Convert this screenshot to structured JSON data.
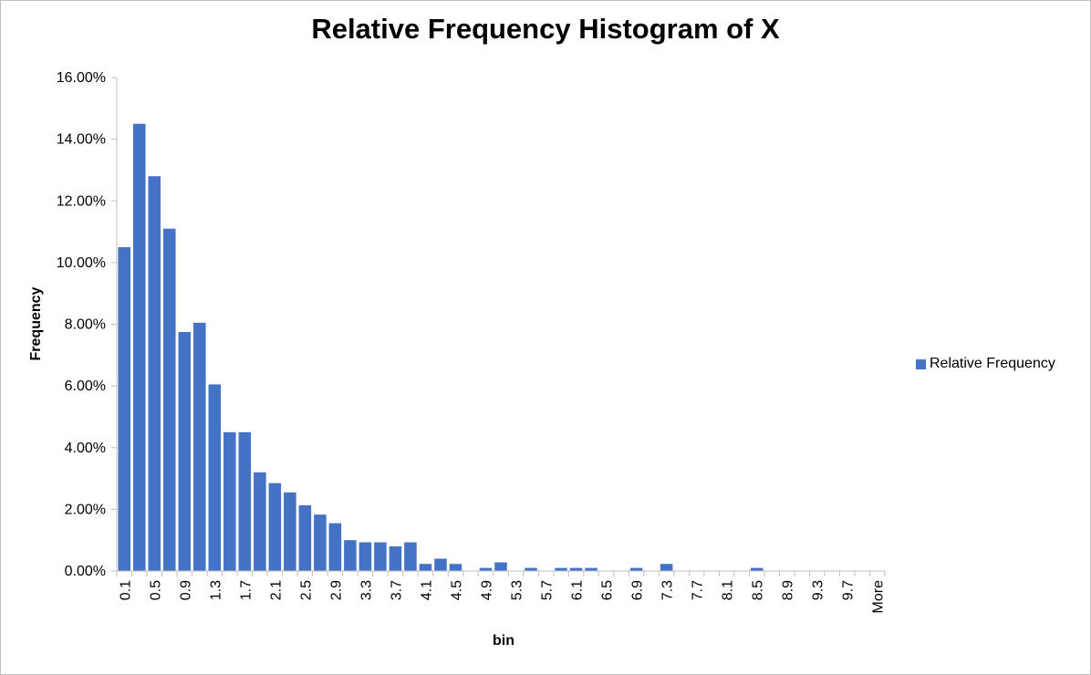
{
  "chart_data": {
    "type": "bar",
    "title": "Relative Frequency Histogram of X",
    "xlabel": "bin",
    "ylabel": "Frequency",
    "ylim": [
      0,
      0.16
    ],
    "y_ticks": [
      "0.00%",
      "2.00%",
      "4.00%",
      "6.00%",
      "8.00%",
      "10.00%",
      "12.00%",
      "14.00%",
      "16.00%"
    ],
    "legend": {
      "position": "right",
      "label": "Relative Frequency"
    },
    "bar_color": "#4472c4",
    "categories": [
      "0.1",
      "0.3",
      "0.5",
      "0.7",
      "0.9",
      "1.1",
      "1.3",
      "1.5",
      "1.7",
      "1.9",
      "2.1",
      "2.3",
      "2.5",
      "2.7",
      "2.9",
      "3.1",
      "3.3",
      "3.5",
      "3.7",
      "3.9",
      "4.1",
      "4.3",
      "4.5",
      "4.7",
      "4.9",
      "5.1",
      "5.3",
      "5.5",
      "5.7",
      "5.9",
      "6.1",
      "6.3",
      "6.5",
      "6.7",
      "6.9",
      "7.1",
      "7.3",
      "7.5",
      "7.7",
      "7.9",
      "8.1",
      "8.3",
      "8.5",
      "8.7",
      "8.9",
      "9.1",
      "9.3",
      "9.5",
      "9.7",
      "9.9",
      "More"
    ],
    "x_tick_labels": [
      "0.1",
      "0.5",
      "0.9",
      "1.3",
      "1.7",
      "2.1",
      "2.5",
      "2.9",
      "3.3",
      "3.7",
      "4.1",
      "4.5",
      "4.9",
      "5.3",
      "5.7",
      "6.1",
      "6.5",
      "6.9",
      "7.3",
      "7.7",
      "8.1",
      "8.5",
      "8.9",
      "9.3",
      "9.7",
      "More"
    ],
    "series": [
      {
        "name": "Relative Frequency",
        "values": [
          0.105,
          0.145,
          0.128,
          0.111,
          0.0775,
          0.0805,
          0.0605,
          0.045,
          0.045,
          0.032,
          0.0285,
          0.0255,
          0.0213,
          0.0183,
          0.0155,
          0.01,
          0.0093,
          0.0093,
          0.008,
          0.0093,
          0.0023,
          0.004,
          0.0023,
          0,
          0.001,
          0.0028,
          0,
          0.001,
          0,
          0.001,
          0.001,
          0.001,
          0,
          0,
          0.001,
          0,
          0.0023,
          0,
          0,
          0,
          0,
          0,
          0.001,
          0,
          0,
          0,
          0,
          0,
          0,
          0,
          0
        ]
      }
    ]
  }
}
